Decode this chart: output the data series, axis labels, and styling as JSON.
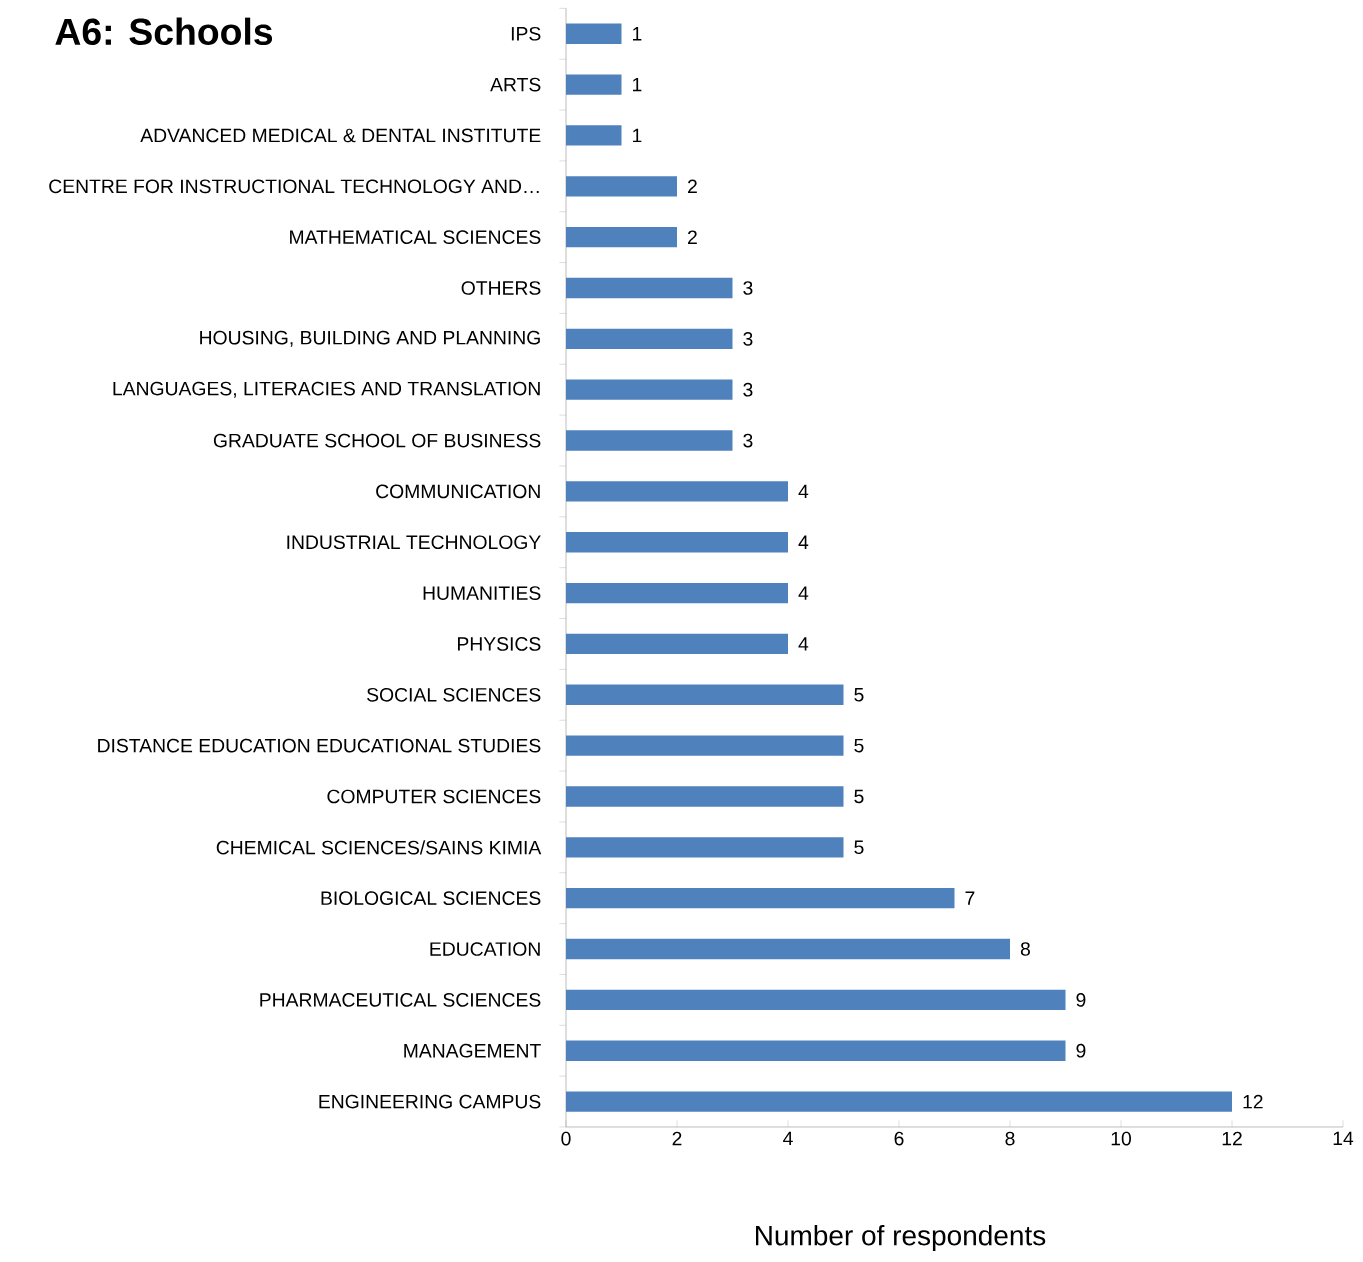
{
  "chart_data": {
    "type": "bar",
    "orientation": "horizontal",
    "title": "A6: Schools",
    "xlabel": "Number of respondents",
    "categories": [
      "IPS",
      "ARTS",
      "ADVANCED MEDICAL & DENTAL INSTITUTE",
      "CENTRE FOR INSTRUCTIONAL TECHNOLOGY AND…",
      "MATHEMATICAL SCIENCES",
      "OTHERS",
      "HOUSING, BUILDING AND PLANNING",
      "LANGUAGES, LITERACIES AND TRANSLATION",
      "GRADUATE SCHOOL OF BUSINESS",
      "COMMUNICATION",
      "INDUSTRIAL TECHNOLOGY",
      "HUMANITIES",
      "PHYSICS",
      "SOCIAL SCIENCES",
      "DISTANCE EDUCATION EDUCATIONAL STUDIES",
      "COMPUTER SCIENCES",
      "CHEMICAL SCIENCES/SAINS KIMIA",
      "BIOLOGICAL SCIENCES",
      "EDUCATION",
      "PHARMACEUTICAL SCIENCES",
      "MANAGEMENT",
      "ENGINEERING CAMPUS"
    ],
    "values": [
      1,
      1,
      1,
      2,
      2,
      3,
      3,
      3,
      3,
      4,
      4,
      4,
      4,
      5,
      5,
      5,
      5,
      7,
      8,
      9,
      9,
      12
    ],
    "color": "#4f81bd",
    "xlim": [
      0,
      14
    ],
    "xticks": [
      0,
      2,
      4,
      6,
      8,
      10,
      12,
      14
    ],
    "data_labels": true
  }
}
